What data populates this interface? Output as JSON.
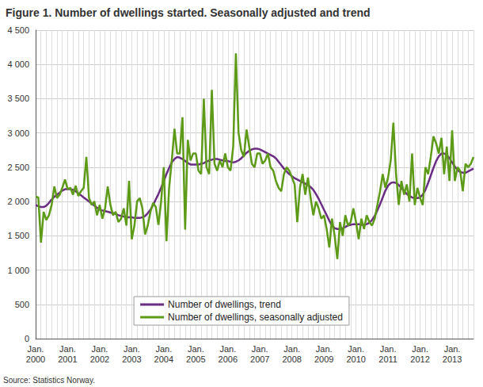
{
  "chart_data": {
    "type": "line",
    "title": "Figure 1. Number of dwellings started. Seasonally adjusted and trend",
    "source": "Source: Statistics Norway.",
    "categories": [
      "Jan.\n2000",
      null,
      null,
      null,
      null,
      null,
      null,
      null,
      null,
      null,
      null,
      null,
      "Jan.\n2001",
      null,
      null,
      null,
      null,
      null,
      null,
      null,
      null,
      null,
      null,
      null,
      "Jan.\n2002",
      null,
      null,
      null,
      null,
      null,
      null,
      null,
      null,
      null,
      null,
      null,
      "Jan.\n2003",
      null,
      null,
      null,
      null,
      null,
      null,
      null,
      null,
      null,
      null,
      null,
      "Jan.\n2004",
      null,
      null,
      null,
      null,
      null,
      null,
      null,
      null,
      null,
      null,
      null,
      "Jan.\n2005",
      null,
      null,
      null,
      null,
      null,
      null,
      null,
      null,
      null,
      null,
      null,
      "Jan.\n2006",
      null,
      null,
      null,
      null,
      null,
      null,
      null,
      null,
      null,
      null,
      null,
      "Jan.\n2007",
      null,
      null,
      null,
      null,
      null,
      null,
      null,
      null,
      null,
      null,
      null,
      "Jan.\n2008",
      null,
      null,
      null,
      null,
      null,
      null,
      null,
      null,
      null,
      null,
      null,
      "Jan.\n2009",
      null,
      null,
      null,
      null,
      null,
      null,
      null,
      null,
      null,
      null,
      null,
      "Jan.\n2010",
      null,
      null,
      null,
      null,
      null,
      null,
      null,
      null,
      null,
      null,
      null,
      "Jan.\n2011",
      null,
      null,
      null,
      null,
      null,
      null,
      null,
      null,
      null,
      null,
      null,
      "Jan.\n2012",
      null,
      null,
      null,
      null,
      null,
      null,
      null,
      null,
      null,
      null,
      null,
      "Jan.\n2013",
      null,
      null,
      null,
      null,
      null,
      null,
      null,
      null
    ],
    "series": [
      {
        "name": "Number of dwellings, trend",
        "color": "#6b2d84",
        "values": [
          1950,
          1930,
          1920,
          1920,
          1940,
          1980,
          2030,
          2070,
          2100,
          2130,
          2160,
          2180,
          2180,
          2180,
          2170,
          2150,
          2120,
          2090,
          2060,
          2030,
          2000,
          1970,
          1940,
          1910,
          1880,
          1870,
          1860,
          1850,
          1840,
          1830,
          1820,
          1800,
          1790,
          1780,
          1770,
          1770,
          1770,
          1760,
          1760,
          1760,
          1770,
          1790,
          1830,
          1880,
          1950,
          2030,
          2110,
          2200,
          2300,
          2400,
          2490,
          2570,
          2620,
          2650,
          2640,
          2620,
          2590,
          2560,
          2540,
          2540,
          2540,
          2540,
          2550,
          2560,
          2580,
          2600,
          2610,
          2620,
          2620,
          2610,
          2600,
          2590,
          2590,
          2580,
          2570,
          2580,
          2600,
          2630,
          2670,
          2710,
          2740,
          2760,
          2770,
          2770,
          2760,
          2740,
          2720,
          2700,
          2680,
          2660,
          2630,
          2580,
          2530,
          2480,
          2440,
          2400,
          2370,
          2340,
          2320,
          2300,
          2280,
          2260,
          2240,
          2210,
          2170,
          2110,
          2040,
          1960,
          1880,
          1800,
          1720,
          1650,
          1610,
          1600,
          1600,
          1610,
          1630,
          1650,
          1660,
          1670,
          1670,
          1670,
          1660,
          1660,
          1670,
          1690,
          1730,
          1790,
          1870,
          1960,
          2060,
          2160,
          2230,
          2270,
          2280,
          2270,
          2240,
          2200,
          2150,
          2110,
          2080,
          2060,
          2050,
          2050,
          2060,
          2100,
          2170,
          2270,
          2380,
          2490,
          2590,
          2660,
          2700,
          2700,
          2680,
          2630,
          2570,
          2510,
          2460,
          2430,
          2420,
          2420,
          2440,
          2460,
          2480
        ]
      },
      {
        "name": "Number of dwellings, seasonally adjusted",
        "color": "#5c9a18",
        "values": [
          2070,
          2060,
          1400,
          1850,
          1730,
          1800,
          1950,
          2220,
          2050,
          2100,
          2200,
          2320,
          2180,
          2200,
          2100,
          2230,
          2080,
          2150,
          2200,
          2650,
          2050,
          1950,
          2000,
          1800,
          1950,
          1750,
          1900,
          2220,
          1950,
          1800,
          1850,
          1700,
          1750,
          1900,
          1650,
          2300,
          1450,
          1650,
          2000,
          2050,
          1900,
          1520,
          1650,
          1850,
          1980,
          1920,
          1660,
          2000,
          2500,
          1420,
          2200,
          2600,
          3060,
          2700,
          2700,
          3230,
          1590,
          2900,
          2600,
          2700,
          2700,
          2450,
          2400,
          3500,
          2500,
          2400,
          3630,
          2550,
          2450,
          2600,
          2500,
          2700,
          2500,
          2450,
          2800,
          4160,
          3000,
          2750,
          2650,
          3050,
          2800,
          2550,
          2500,
          2700,
          2700,
          2550,
          2600,
          2700,
          2500,
          2450,
          2300,
          2200,
          2150,
          2400,
          2500,
          2450,
          2350,
          2250,
          1700,
          2200,
          2400,
          2100,
          2350,
          2050,
          1800,
          2000,
          1900,
          1750,
          1800,
          1600,
          1330,
          1750,
          1500,
          1160,
          1700,
          1500,
          1800,
          1650,
          1700,
          1900,
          1700,
          1450,
          1750,
          1600,
          1800,
          1700,
          1650,
          1750,
          1950,
          2150,
          2400,
          2200,
          2350,
          2600,
          3150,
          2400,
          1950,
          2300,
          2100,
          2250,
          2000,
          2700,
          1950,
          2200,
          2050,
          1950,
          2500,
          2400,
          2650,
          2950,
          2850,
          2700,
          2930,
          2400,
          2800,
          2300,
          3040,
          2300,
          2500,
          2450,
          2150,
          2550,
          2500,
          2550,
          2650
        ]
      }
    ],
    "ylim": [
      0,
      4500
    ],
    "yticks": [
      0,
      500,
      {
        "value": 1000,
        "label": "1 000"
      },
      {
        "value": 1500,
        "label": "1 500"
      },
      {
        "value": 2000,
        "label": "2 000"
      },
      {
        "value": 2500,
        "label": "2 500"
      },
      {
        "value": 3000,
        "label": "3 000"
      },
      {
        "value": 3500,
        "label": "3 500"
      },
      {
        "value": 4000,
        "label": "4 000"
      },
      {
        "value": 4500,
        "label": "4 500"
      }
    ],
    "grid": true,
    "legend": "bottom"
  }
}
